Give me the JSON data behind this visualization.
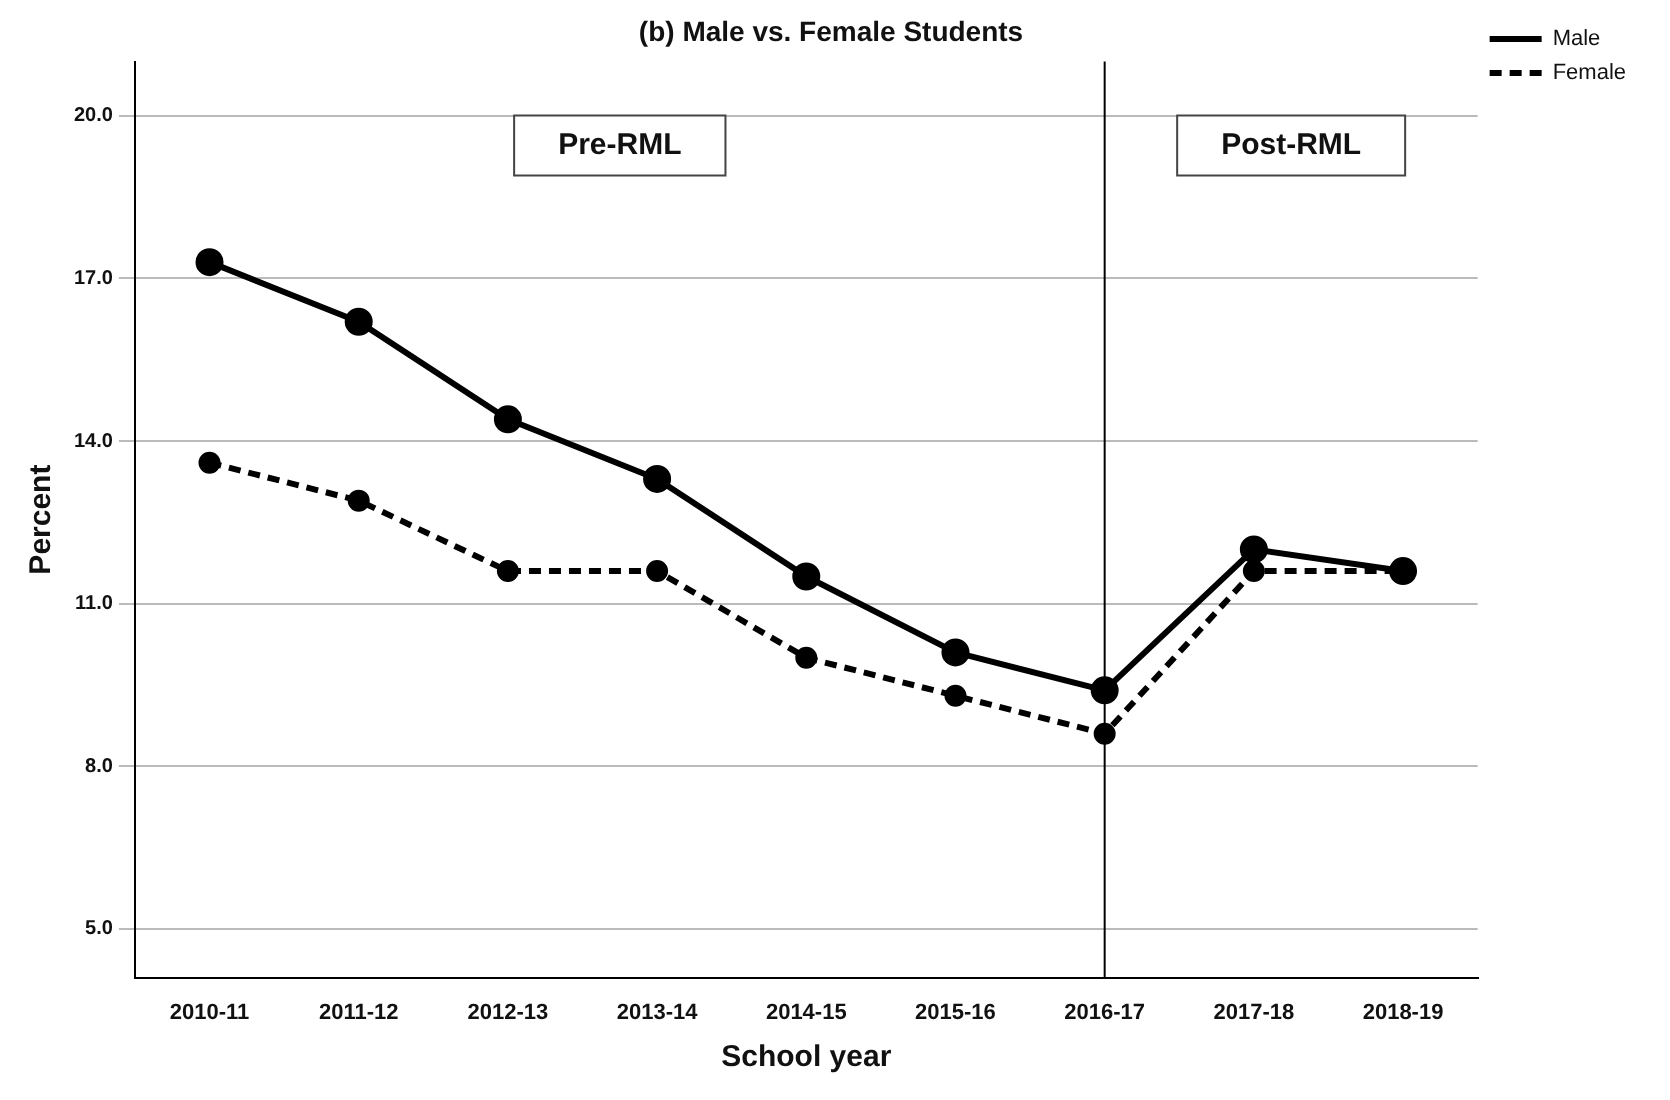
{
  "chart_data": {
    "type": "line",
    "title": "(b) Male vs. Female Students",
    "xlabel": "School year",
    "ylabel": "Percent",
    "categories": [
      "2010-11",
      "2011-12",
      "2012-13",
      "2013-14",
      "2014-15",
      "2015-16",
      "2016-17",
      "2017-18",
      "2018-19"
    ],
    "series": [
      {
        "name": "Male",
        "color": "#000000",
        "line_style": "solid",
        "values": [
          17.3,
          16.2,
          14.4,
          13.3,
          11.5,
          10.1,
          9.4,
          12.0,
          11.6
        ]
      },
      {
        "name": "Female",
        "color": "#000000",
        "line_style": "dashed",
        "values": [
          13.6,
          12.9,
          11.6,
          11.6,
          10.0,
          9.3,
          8.6,
          11.6,
          11.6
        ]
      }
    ],
    "ylim": [
      4.1,
      21
    ],
    "yticks": [
      {
        "value": 5,
        "label": "5.0"
      },
      {
        "value": 8,
        "label": "8.0"
      },
      {
        "value": 11,
        "label": "11.0"
      },
      {
        "value": 14,
        "label": "14.0"
      },
      {
        "value": 17,
        "label": "17.0"
      },
      {
        "value": 20,
        "label": "20.0"
      }
    ],
    "grid": "y",
    "legend": "top right",
    "marker": "circle",
    "ref_lines": [
      {
        "axis": "x",
        "value": "2016-17",
        "color": "#000000"
      }
    ],
    "annotations": [
      "Pre-RML",
      "Post-RML"
    ]
  }
}
